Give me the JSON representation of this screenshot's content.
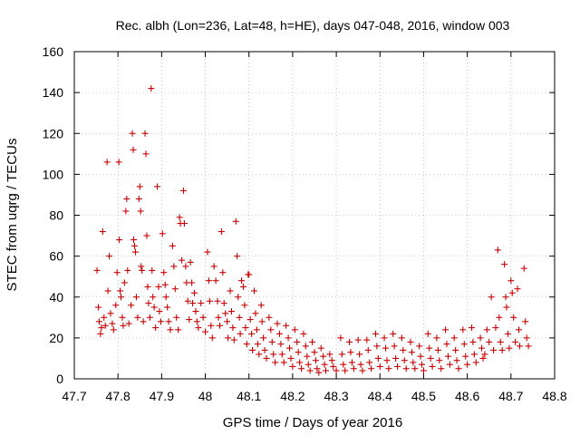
{
  "chart_data": {
    "type": "scatter",
    "title": "Rec. albh (Lon=236, Lat=48, h=HE), days 047-048, 2016, window 003",
    "xlabel": "GPS time / Days of year 2016",
    "ylabel": "STEC from uqrg / TECUs",
    "xlim": [
      47.7,
      48.8
    ],
    "ylim": [
      0,
      160
    ],
    "xticks": [
      "47.7",
      "47.8",
      "47.9",
      "48",
      "48.1",
      "48.2",
      "48.3",
      "48.4",
      "48.5",
      "48.6",
      "48.7",
      "48.8"
    ],
    "yticks": [
      "0",
      "20",
      "40",
      "60",
      "80",
      "100",
      "120",
      "140",
      "160"
    ],
    "grid": true,
    "marker": "plus",
    "color": "#cc0000",
    "series": [
      {
        "points": [
          [
            47.752,
            53
          ],
          [
            47.755,
            35
          ],
          [
            47.757,
            28
          ],
          [
            47.76,
            22
          ],
          [
            47.762,
            25
          ],
          [
            47.765,
            72
          ],
          [
            47.768,
            30
          ],
          [
            47.771,
            26
          ],
          [
            47.775,
            106
          ],
          [
            47.777,
            43
          ],
          [
            47.78,
            60
          ],
          [
            47.783,
            32
          ],
          [
            47.787,
            27
          ],
          [
            47.79,
            24
          ],
          [
            47.795,
            36
          ],
          [
            47.798,
            52
          ],
          [
            47.802,
            106
          ],
          [
            47.803,
            68
          ],
          [
            47.805,
            43
          ],
          [
            47.807,
            40
          ],
          [
            47.81,
            30
          ],
          [
            47.812,
            26
          ],
          [
            47.815,
            47
          ],
          [
            47.818,
            82
          ],
          [
            47.82,
            88
          ],
          [
            47.822,
            53
          ],
          [
            47.825,
            27
          ],
          [
            47.83,
            36
          ],
          [
            47.833,
            120
          ],
          [
            47.835,
            112
          ],
          [
            47.836,
            68
          ],
          [
            47.838,
            65
          ],
          [
            47.84,
            62
          ],
          [
            47.842,
            40
          ],
          [
            47.845,
            30
          ],
          [
            47.848,
            88
          ],
          [
            47.85,
            94
          ],
          [
            47.852,
            82
          ],
          [
            47.853,
            55
          ],
          [
            47.855,
            53
          ],
          [
            47.858,
            28
          ],
          [
            47.862,
            120
          ],
          [
            47.864,
            110
          ],
          [
            47.866,
            70
          ],
          [
            47.868,
            45
          ],
          [
            47.87,
            37
          ],
          [
            47.873,
            30
          ],
          [
            47.876,
            142
          ],
          [
            47.878,
            53
          ],
          [
            47.88,
            40
          ],
          [
            47.883,
            35
          ],
          [
            47.886,
            25
          ],
          [
            47.89,
            94
          ],
          [
            47.893,
            45
          ],
          [
            47.895,
            33
          ],
          [
            47.898,
            28
          ],
          [
            47.902,
            71
          ],
          [
            47.905,
            52
          ],
          [
            47.908,
            46
          ],
          [
            47.91,
            40
          ],
          [
            47.913,
            35
          ],
          [
            47.916,
            28
          ],
          [
            47.92,
            24
          ],
          [
            47.925,
            65
          ],
          [
            47.928,
            55
          ],
          [
            47.931,
            44
          ],
          [
            47.934,
            30
          ],
          [
            47.938,
            24
          ],
          [
            47.941,
            79
          ],
          [
            47.943,
            76
          ],
          [
            47.946,
            58
          ],
          [
            47.95,
            92
          ],
          [
            47.952,
            76
          ],
          [
            47.955,
            55
          ],
          [
            47.957,
            47
          ],
          [
            47.96,
            38
          ],
          [
            47.963,
            29
          ],
          [
            47.966,
            57
          ],
          [
            47.969,
            47
          ],
          [
            47.971,
            37
          ],
          [
            47.975,
            42
          ],
          [
            47.978,
            33
          ],
          [
            47.981,
            28
          ],
          [
            47.984,
            25
          ],
          [
            47.99,
            37
          ],
          [
            47.995,
            30
          ],
          [
            48.0,
            23
          ],
          [
            48.005,
            62
          ],
          [
            48.008,
            48
          ],
          [
            48.01,
            38
          ],
          [
            48.013,
            26
          ],
          [
            48.016,
            20
          ],
          [
            48.02,
            55
          ],
          [
            48.024,
            48
          ],
          [
            48.028,
            38
          ],
          [
            48.03,
            30
          ],
          [
            48.033,
            26
          ],
          [
            48.037,
            72
          ],
          [
            48.04,
            52
          ],
          [
            48.043,
            37
          ],
          [
            48.046,
            32
          ],
          [
            48.05,
            28
          ],
          [
            48.052,
            20
          ],
          [
            48.057,
            43
          ],
          [
            48.06,
            33
          ],
          [
            48.063,
            25
          ],
          [
            48.066,
            19
          ],
          [
            48.07,
            77
          ],
          [
            48.073,
            60
          ],
          [
            48.075,
            40
          ],
          [
            48.078,
            30
          ],
          [
            48.08,
            22
          ],
          [
            48.083,
            48
          ],
          [
            48.087,
            45
          ],
          [
            48.09,
            36
          ],
          [
            48.092,
            25
          ],
          [
            48.095,
            17
          ],
          [
            48.098,
            51
          ],
          [
            48.1,
            51
          ],
          [
            48.103,
            29
          ],
          [
            48.106,
            22
          ],
          [
            48.108,
            14
          ],
          [
            48.112,
            43
          ],
          [
            48.115,
            32
          ],
          [
            48.118,
            24
          ],
          [
            48.12,
            17
          ],
          [
            48.123,
            12
          ],
          [
            48.128,
            36
          ],
          [
            48.13,
            28
          ],
          [
            48.133,
            20
          ],
          [
            48.136,
            14
          ],
          [
            48.14,
            10
          ],
          [
            48.146,
            30
          ],
          [
            48.15,
            24
          ],
          [
            48.153,
            18
          ],
          [
            48.156,
            12
          ],
          [
            48.16,
            8
          ],
          [
            48.165,
            27
          ],
          [
            48.17,
            22
          ],
          [
            48.173,
            17
          ],
          [
            48.176,
            12
          ],
          [
            48.18,
            8
          ],
          [
            48.185,
            26
          ],
          [
            48.19,
            20
          ],
          [
            48.193,
            15
          ],
          [
            48.196,
            10
          ],
          [
            48.2,
            6
          ],
          [
            48.205,
            24
          ],
          [
            48.21,
            18
          ],
          [
            48.213,
            13
          ],
          [
            48.216,
            8
          ],
          [
            48.22,
            5
          ],
          [
            48.225,
            22
          ],
          [
            48.23,
            16
          ],
          [
            48.233,
            11
          ],
          [
            48.236,
            7
          ],
          [
            48.24,
            4
          ],
          [
            48.245,
            18
          ],
          [
            48.25,
            13
          ],
          [
            48.253,
            9
          ],
          [
            48.256,
            5
          ],
          [
            48.26,
            3
          ],
          [
            48.265,
            15
          ],
          [
            48.27,
            11
          ],
          [
            48.273,
            7
          ],
          [
            48.276,
            4
          ],
          [
            48.285,
            12
          ],
          [
            48.29,
            9
          ],
          [
            48.293,
            6
          ],
          [
            48.3,
            4
          ],
          [
            48.31,
            20
          ],
          [
            48.313,
            12
          ],
          [
            48.316,
            7
          ],
          [
            48.32,
            4
          ],
          [
            48.33,
            18
          ],
          [
            48.333,
            13
          ],
          [
            48.336,
            8
          ],
          [
            48.34,
            5
          ],
          [
            48.35,
            19
          ],
          [
            48.353,
            12
          ],
          [
            48.356,
            7
          ],
          [
            48.36,
            4
          ],
          [
            48.37,
            19
          ],
          [
            48.373,
            14
          ],
          [
            48.376,
            8
          ],
          [
            48.38,
            5
          ],
          [
            48.39,
            22
          ],
          [
            48.393,
            16
          ],
          [
            48.396,
            10
          ],
          [
            48.4,
            6
          ],
          [
            48.41,
            20
          ],
          [
            48.413,
            15
          ],
          [
            48.416,
            9
          ],
          [
            48.42,
            5
          ],
          [
            48.43,
            22
          ],
          [
            48.433,
            16
          ],
          [
            48.436,
            10
          ],
          [
            48.44,
            6
          ],
          [
            48.45,
            20
          ],
          [
            48.453,
            14
          ],
          [
            48.456,
            9
          ],
          [
            48.46,
            5
          ],
          [
            48.47,
            18
          ],
          [
            48.473,
            13
          ],
          [
            48.476,
            8
          ],
          [
            48.48,
            5
          ],
          [
            48.49,
            16
          ],
          [
            48.493,
            11
          ],
          [
            48.496,
            7
          ],
          [
            48.5,
            4
          ],
          [
            48.51,
            22
          ],
          [
            48.513,
            15
          ],
          [
            48.516,
            10
          ],
          [
            48.52,
            6
          ],
          [
            48.53,
            20
          ],
          [
            48.533,
            14
          ],
          [
            48.536,
            9
          ],
          [
            48.54,
            5
          ],
          [
            48.55,
            24
          ],
          [
            48.553,
            17
          ],
          [
            48.556,
            11
          ],
          [
            48.56,
            7
          ],
          [
            48.57,
            20
          ],
          [
            48.573,
            14
          ],
          [
            48.576,
            9
          ],
          [
            48.58,
            5
          ],
          [
            48.59,
            24
          ],
          [
            48.593,
            17
          ],
          [
            48.596,
            11
          ],
          [
            48.6,
            7
          ],
          [
            48.61,
            25
          ],
          [
            48.613,
            18
          ],
          [
            48.616,
            12
          ],
          [
            48.62,
            8
          ],
          [
            48.63,
            20
          ],
          [
            48.633,
            15
          ],
          [
            48.636,
            10
          ],
          [
            48.64,
            12
          ],
          [
            48.645,
            24
          ],
          [
            48.65,
            18
          ],
          [
            48.655,
            40
          ],
          [
            48.66,
            14
          ],
          [
            48.665,
            25
          ],
          [
            48.67,
            63
          ],
          [
            48.673,
            30
          ],
          [
            48.676,
            18
          ],
          [
            48.68,
            14
          ],
          [
            48.685,
            56
          ],
          [
            48.688,
            40
          ],
          [
            48.69,
            35
          ],
          [
            48.693,
            22
          ],
          [
            48.696,
            15
          ],
          [
            48.7,
            48
          ],
          [
            48.703,
            42
          ],
          [
            48.706,
            30
          ],
          [
            48.71,
            18
          ],
          [
            48.715,
            44
          ],
          [
            48.718,
            24
          ],
          [
            48.72,
            16
          ],
          [
            48.73,
            54
          ],
          [
            48.733,
            28
          ],
          [
            48.736,
            20
          ],
          [
            48.74,
            16
          ]
        ]
      }
    ]
  }
}
